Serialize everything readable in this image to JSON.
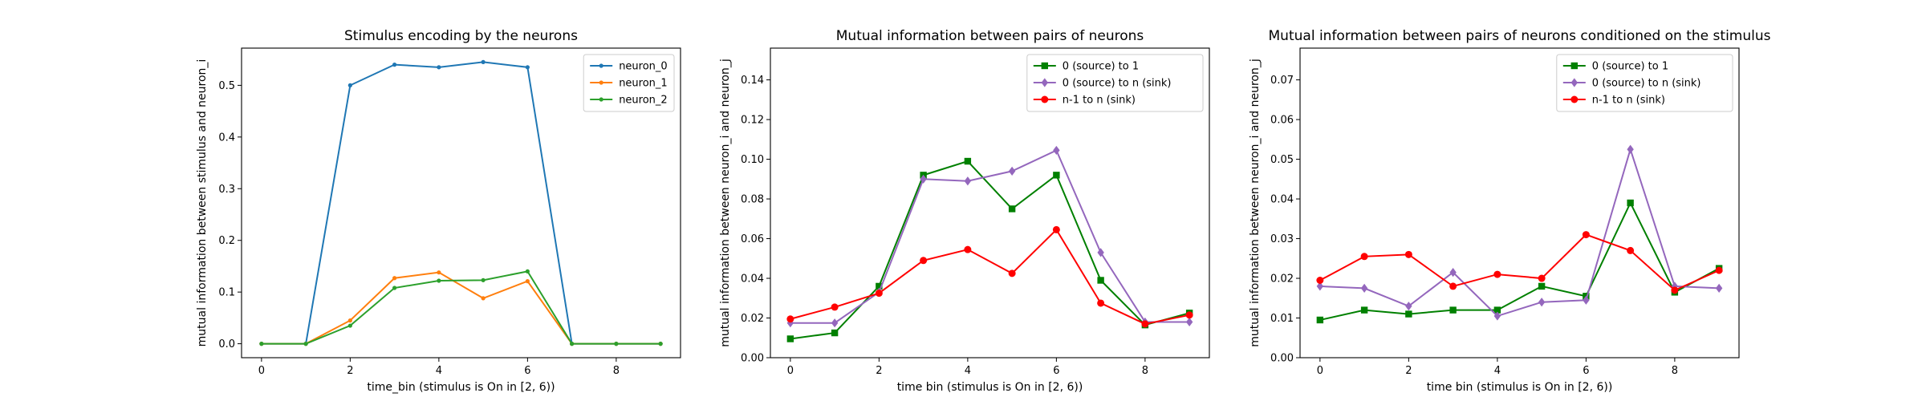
{
  "chart_data": [
    {
      "type": "line",
      "title": "Stimulus encoding by the neurons",
      "xlabel": "time_bin (stimulus is On in [2, 6))",
      "ylabel": "mutual information between stimulus and neuron_i",
      "xlim": [
        -0.45,
        9.45
      ],
      "ylim": [
        -0.027,
        0.572
      ],
      "xticks": [
        0,
        2,
        4,
        6,
        8
      ],
      "yticks": [
        0.0,
        0.1,
        0.2,
        0.3,
        0.4,
        0.5
      ],
      "ytick_decimals": 1,
      "legend_position": "top-right",
      "x": [
        0,
        1,
        2,
        3,
        4,
        5,
        6,
        7,
        8,
        9
      ],
      "series": [
        {
          "name": "neuron_0",
          "color": "#1f77b4",
          "marker": "point",
          "values": [
            0.0,
            0.0,
            0.5,
            0.54,
            0.535,
            0.545,
            0.535,
            0.0,
            0.0,
            0.0
          ]
        },
        {
          "name": "neuron_1",
          "color": "#ff7f0e",
          "marker": "point",
          "values": [
            0.0,
            0.0,
            0.045,
            0.127,
            0.138,
            0.088,
            0.121,
            0.0,
            0.0,
            0.0
          ]
        },
        {
          "name": "neuron_2",
          "color": "#2ca02c",
          "marker": "point",
          "values": [
            0.0,
            0.0,
            0.035,
            0.108,
            0.122,
            0.123,
            0.14,
            0.0,
            0.0,
            0.0
          ]
        }
      ]
    },
    {
      "type": "line",
      "title": "Mutual information between pairs of neurons",
      "xlabel": "time bin (stimulus is On in [2, 6))",
      "ylabel": "mutual information between neuron_i and neuron_j",
      "xlim": [
        -0.45,
        9.45
      ],
      "ylim": [
        0.0,
        0.156
      ],
      "xticks": [
        0,
        2,
        4,
        6,
        8
      ],
      "yticks": [
        0.0,
        0.02,
        0.04,
        0.06,
        0.08,
        0.1,
        0.12,
        0.14
      ],
      "ytick_decimals": 2,
      "legend_position": "top-right",
      "x": [
        0,
        1,
        2,
        3,
        4,
        5,
        6,
        7,
        8,
        9
      ],
      "series": [
        {
          "name": "0 (source) to 1",
          "color": "#008000",
          "marker": "square",
          "values": [
            0.0095,
            0.0125,
            0.036,
            0.092,
            0.099,
            0.075,
            0.092,
            0.039,
            0.0165,
            0.0225
          ]
        },
        {
          "name": "0 (source) to n (sink)",
          "color": "#9467bd",
          "marker": "diamond",
          "values": [
            0.0175,
            0.0175,
            0.033,
            0.09,
            0.089,
            0.094,
            0.1045,
            0.053,
            0.018,
            0.018
          ]
        },
        {
          "name": "n-1 to n (sink)",
          "color": "#ff0000",
          "marker": "circle",
          "values": [
            0.0195,
            0.0255,
            0.0325,
            0.049,
            0.0545,
            0.0425,
            0.0645,
            0.0275,
            0.017,
            0.0215
          ]
        }
      ]
    },
    {
      "type": "line",
      "title": "Mutual information between pairs of neurons conditioned on the stimulus",
      "xlabel": "time bin (stimulus is On in [2, 6))",
      "ylabel": "mutual information between neuron_i and neuron_j",
      "xlim": [
        -0.45,
        9.45
      ],
      "ylim": [
        0.0,
        0.078
      ],
      "xticks": [
        0,
        2,
        4,
        6,
        8
      ],
      "yticks": [
        0.0,
        0.01,
        0.02,
        0.03,
        0.04,
        0.05,
        0.06,
        0.07
      ],
      "ytick_decimals": 2,
      "legend_position": "top-right",
      "x": [
        0,
        1,
        2,
        3,
        4,
        5,
        6,
        7,
        8,
        9
      ],
      "series": [
        {
          "name": "0 (source) to 1",
          "color": "#008000",
          "marker": "square",
          "values": [
            0.0095,
            0.012,
            0.011,
            0.012,
            0.012,
            0.018,
            0.0155,
            0.039,
            0.0165,
            0.0225
          ]
        },
        {
          "name": "0 (source) to n (sink)",
          "color": "#9467bd",
          "marker": "diamond",
          "values": [
            0.018,
            0.0175,
            0.013,
            0.0215,
            0.0105,
            0.014,
            0.0145,
            0.0525,
            0.018,
            0.0175
          ]
        },
        {
          "name": "n-1 to n (sink)",
          "color": "#ff0000",
          "marker": "circle",
          "values": [
            0.0195,
            0.0255,
            0.026,
            0.018,
            0.021,
            0.02,
            0.031,
            0.027,
            0.017,
            0.022
          ]
        }
      ]
    }
  ]
}
